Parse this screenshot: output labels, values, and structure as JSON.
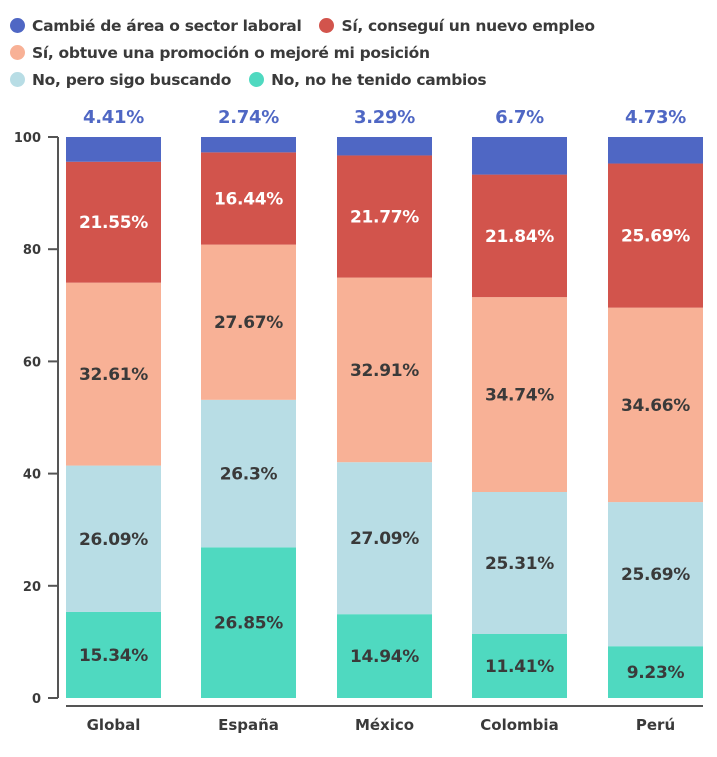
{
  "chart_data": {
    "type": "bar",
    "stacked": true,
    "title": "",
    "xlabel": "",
    "ylabel": "",
    "ylim": [
      0,
      100
    ],
    "yticks": [
      0,
      20,
      40,
      60,
      80,
      100
    ],
    "grid": false,
    "legend_position": "top-left",
    "categories": [
      "Global",
      "España",
      "México",
      "Colombia",
      "Perú"
    ],
    "series": [
      {
        "name": "No, no he tenido cambios",
        "color": "#4fd9c0",
        "label_color": "#3a3a3a",
        "values": [
          15.34,
          26.85,
          14.94,
          11.41,
          9.23
        ],
        "labels": [
          "15.34%",
          "26.85%",
          "14.94%",
          "11.41%",
          "9.23%"
        ]
      },
      {
        "name": "No, pero sigo buscando",
        "color": "#b8dde5",
        "label_color": "#3a3a3a",
        "values": [
          26.09,
          26.3,
          27.09,
          25.31,
          25.69
        ],
        "labels": [
          "26.09%",
          "26.3%",
          "27.09%",
          "25.31%",
          "25.69%"
        ]
      },
      {
        "name": "Sí, obtuve una promoción o mejoré mi posición",
        "color": "#f8b196",
        "label_color": "#3a3a3a",
        "values": [
          32.61,
          27.67,
          32.91,
          34.74,
          34.66
        ],
        "labels": [
          "32.61%",
          "27.67%",
          "32.91%",
          "34.74%",
          "34.66%"
        ]
      },
      {
        "name": "Sí, conseguí un nuevo empleo",
        "color": "#d2544c",
        "label_color": "#ffffff",
        "values": [
          21.55,
          16.44,
          21.77,
          21.84,
          25.69
        ],
        "labels": [
          "21.55%",
          "16.44%",
          "21.77%",
          "21.84%",
          "25.69%"
        ]
      },
      {
        "name": "Cambié de área o sector laboral",
        "color": "#4f67c4",
        "label_color": "#4f67c4",
        "label_position": "above",
        "values": [
          4.41,
          2.74,
          3.29,
          6.7,
          4.73
        ],
        "labels": [
          "4.41%",
          "2.74%",
          "3.29%",
          "6.7%",
          "4.73%"
        ]
      }
    ]
  },
  "legend": {
    "rows": [
      [
        {
          "label": "Cambié de área o sector laboral",
          "color": "#4f67c4"
        },
        {
          "label": "Sí, conseguí un nuevo empleo",
          "color": "#d2544c"
        }
      ],
      [
        {
          "label": "Sí, obtuve una promoción o mejoré mi posición",
          "color": "#f8b196"
        }
      ],
      [
        {
          "label": "No, pero sigo buscando",
          "color": "#b8dde5"
        },
        {
          "label": "No, no he tenido cambios",
          "color": "#4fd9c0"
        }
      ]
    ]
  },
  "axis_color": "#555555",
  "text_color": "#3a3a3a"
}
